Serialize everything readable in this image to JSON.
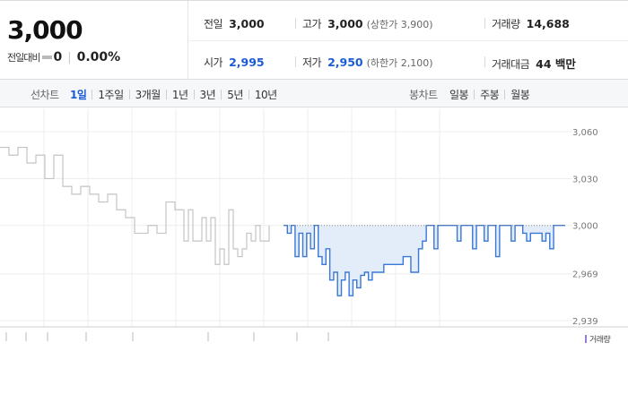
{
  "quote": {
    "price": "3,000",
    "change_label": "전일대비",
    "change_value": "0",
    "change_rate": "0.00%",
    "prev_close": {
      "label": "전일",
      "value": "3,000"
    },
    "high": {
      "label": "고가",
      "value": "3,000",
      "sub": "(상한가 3,900)"
    },
    "volume": {
      "label": "거래량",
      "value": "14,688"
    },
    "open": {
      "label": "시가",
      "value": "2,995"
    },
    "low": {
      "label": "저가",
      "value": "2,950",
      "sub": "(하한가 2,100)"
    },
    "trade_amount": {
      "label": "거래대금",
      "value": "44 백만"
    }
  },
  "line_chart_tabs": {
    "label": "선차트",
    "items": [
      "1일",
      "1주일",
      "3개월",
      "1년",
      "3년",
      "5년",
      "10년"
    ],
    "active": "1일"
  },
  "candle_chart_tabs": {
    "label": "봉차트",
    "items": [
      "일봉",
      "주봉",
      "월봉"
    ]
  },
  "volume_legend": "거래량",
  "colors": {
    "accent": "#1a5cd6",
    "line_before": "#c4c4c4",
    "line_after": "#3a78d8",
    "fill_below_prev": "#e3ecf9",
    "volume_legend": "#9b7bd6"
  },
  "chart_data": {
    "type": "line",
    "title": "",
    "xlabel": "",
    "ylabel": "",
    "y_ticks": [
      "3,060",
      "3,030",
      "3,000",
      "2,969",
      "2,939"
    ],
    "ylim": [
      2935,
      3075
    ],
    "reference_price": 3000,
    "grid": true,
    "gray_series": [
      3050,
      3050,
      3045,
      3045,
      3050,
      3050,
      3040,
      3040,
      3045,
      3045,
      3030,
      3030,
      3045,
      3045,
      3025,
      3025,
      3020,
      3020,
      3025,
      3025,
      3020,
      3020,
      3015,
      3015,
      3020,
      3020,
      3010,
      3010,
      3005,
      3005,
      2995,
      2995,
      2995,
      3000,
      3000,
      2995,
      2995,
      3015,
      3015,
      3010,
      3010,
      2990,
      3010,
      2990,
      2990,
      3005,
      2990,
      3005,
      2975,
      2985,
      2975,
      3010,
      2985,
      2980,
      2985,
      2995,
      2990,
      3000,
      2990,
      2990,
      3000
    ],
    "blue_series": [
      3000,
      2995,
      3000,
      2980,
      2995,
      2980,
      2995,
      2985,
      3000,
      2980,
      2975,
      2985,
      2965,
      2970,
      2955,
      2965,
      2970,
      2955,
      2965,
      2960,
      2968,
      2970,
      2965,
      2970,
      2970,
      2970,
      2975,
      2975,
      2975,
      2975,
      2975,
      2980,
      2980,
      2970,
      2970,
      2985,
      2990,
      3000,
      3000,
      2985,
      3000,
      3000,
      3000,
      3000,
      3000,
      2990,
      3000,
      3000,
      3000,
      2985,
      3000,
      3000,
      2990,
      3000,
      3000,
      2980,
      3000,
      3000,
      3000,
      2990,
      3000,
      3000,
      2995,
      2990,
      2995,
      2995,
      2995,
      2990,
      2995,
      2985,
      3000,
      3000,
      3000,
      3000
    ]
  }
}
